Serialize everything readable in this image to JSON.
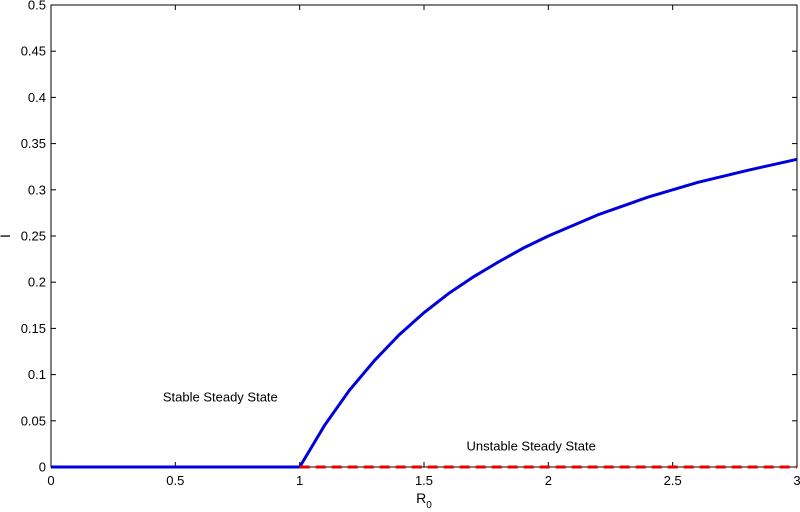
{
  "chart_data": {
    "type": "line",
    "title": "",
    "xlabel": "R",
    "xlabel_subscript": "0",
    "ylabel": "I",
    "xlim": [
      0,
      3
    ],
    "ylim": [
      0,
      0.5
    ],
    "x_ticks": [
      "0",
      "0.5",
      "1",
      "1.5",
      "2",
      "2.5",
      "3"
    ],
    "x_tick_values": [
      0,
      0.5,
      1,
      1.5,
      2,
      2.5,
      3
    ],
    "y_ticks": [
      "0",
      "0.05",
      "0.1",
      "0.15",
      "0.2",
      "0.25",
      "0.3",
      "0.35",
      "0.4",
      "0.45",
      "0.5"
    ],
    "y_tick_values": [
      0,
      0.05,
      0.1,
      0.15,
      0.2,
      0.25,
      0.3,
      0.35,
      0.4,
      0.45,
      0.5
    ],
    "grid": false,
    "series": [
      {
        "color": "#0000dd",
        "style": "solid",
        "x": [
          0,
          0.5,
          1.0
        ],
        "y": [
          0,
          0,
          0
        ]
      },
      {
        "color": "#0000dd",
        "style": "solid",
        "x": [
          1.0,
          1.1,
          1.2,
          1.3,
          1.4,
          1.5,
          1.6,
          1.7,
          1.8,
          1.9,
          2.0,
          2.2,
          2.4,
          2.6,
          2.8,
          3.0
        ],
        "y": [
          0,
          0.045,
          0.083,
          0.115,
          0.143,
          0.167,
          0.188,
          0.206,
          0.222,
          0.237,
          0.25,
          0.273,
          0.292,
          0.308,
          0.321,
          0.333
        ]
      },
      {
        "color": "#ee0000",
        "style": "dashed",
        "x": [
          1.0,
          3.0
        ],
        "y": [
          0,
          0
        ]
      }
    ],
    "annotations": [
      {
        "text": "Stable Steady State",
        "x": 0.5,
        "y": 0.075
      },
      {
        "text": "Unstable Steady State",
        "x": 1.75,
        "y": 0.022
      }
    ]
  }
}
